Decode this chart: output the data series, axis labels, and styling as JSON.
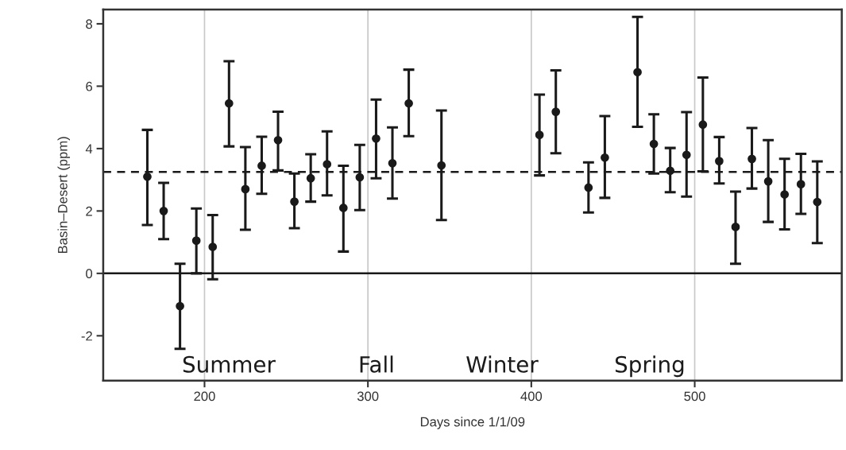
{
  "chart_data": {
    "type": "scatter",
    "xlabel": "Days since 1/1/09",
    "ylabel": "Basin–Desert (ppm)",
    "x": [
      165,
      175,
      185,
      195,
      205,
      215,
      225,
      235,
      245,
      255,
      265,
      275,
      285,
      295,
      305,
      315,
      325,
      345,
      405,
      415,
      435,
      445,
      465,
      475,
      485,
      495,
      505,
      515,
      525,
      535,
      545,
      555,
      565,
      575
    ],
    "values": [
      3.1,
      2.0,
      -1.05,
      1.05,
      0.85,
      5.45,
      2.7,
      3.45,
      4.27,
      2.3,
      3.05,
      3.5,
      2.1,
      3.08,
      4.32,
      3.53,
      5.45,
      3.46,
      4.44,
      5.18,
      2.75,
      3.71,
      6.45,
      4.15,
      3.29,
      3.8,
      4.77,
      3.6,
      1.49,
      3.67,
      2.95,
      2.53,
      2.86,
      2.29
    ],
    "errors": [
      [
        1.55,
        4.6
      ],
      [
        1.1,
        2.9
      ],
      [
        -2.42,
        0.31
      ],
      [
        0.0,
        2.08
      ],
      [
        -0.19,
        1.87
      ],
      [
        4.07,
        6.8
      ],
      [
        1.4,
        4.05
      ],
      [
        2.55,
        4.38
      ],
      [
        3.3,
        5.18
      ],
      [
        1.45,
        3.2
      ],
      [
        2.3,
        3.82
      ],
      [
        2.5,
        4.55
      ],
      [
        0.7,
        3.45
      ],
      [
        2.03,
        4.12
      ],
      [
        3.05,
        5.57
      ],
      [
        2.4,
        4.68
      ],
      [
        4.4,
        6.53
      ],
      [
        1.71,
        5.22
      ],
      [
        3.14,
        5.73
      ],
      [
        3.85,
        6.51
      ],
      [
        1.95,
        3.56
      ],
      [
        2.42,
        5.04
      ],
      [
        4.7,
        8.22
      ],
      [
        3.2,
        5.1
      ],
      [
        2.6,
        4.02
      ],
      [
        2.46,
        5.17
      ],
      [
        3.27,
        6.28
      ],
      [
        2.88,
        4.37
      ],
      [
        0.31,
        2.62
      ],
      [
        2.72,
        4.66
      ],
      [
        1.65,
        4.27
      ],
      [
        1.41,
        3.67
      ],
      [
        1.91,
        3.83
      ],
      [
        0.97,
        3.59
      ]
    ],
    "color": "#1a1a1a",
    "marker": "circle",
    "xlim": [
      138,
      590
    ],
    "ylim": [
      -3.44,
      8.46
    ],
    "xticks": [
      200,
      300,
      400,
      500
    ],
    "yticks": [
      -2,
      0,
      2,
      4,
      6,
      8
    ],
    "grid": "x",
    "legend": false,
    "ref_lines": [
      {
        "axis": "y",
        "value": 0,
        "line_style": "solid",
        "color": "#1a1a1a"
      },
      {
        "axis": "y",
        "value": 3.25,
        "line_style": "dashed",
        "color": "#1a1a1a"
      }
    ],
    "annotations": [
      "Summer",
      "Fall",
      "Winter",
      "Spring"
    ]
  }
}
